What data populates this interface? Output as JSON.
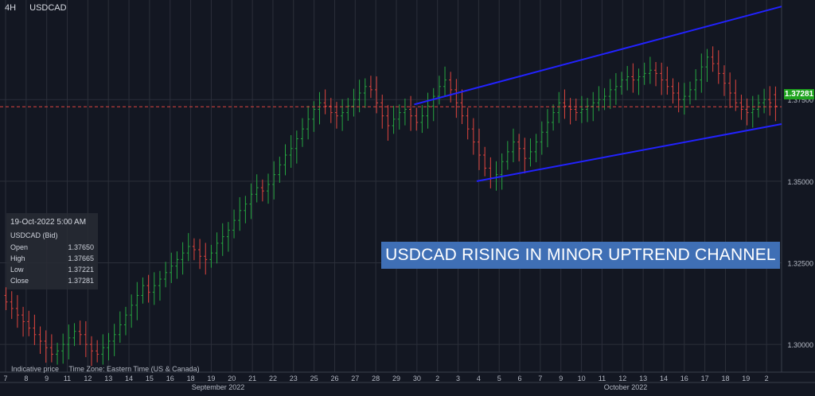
{
  "header": {
    "timeframe": "4H",
    "symbol": "USDCAD"
  },
  "info_box": {
    "datetime": "19-Oct-2022 5:00 AM",
    "title": "USDCAD (Bid)",
    "rows": [
      {
        "label": "Open",
        "value": "1.37650"
      },
      {
        "label": "High",
        "value": "1.37665"
      },
      {
        "label": "Low",
        "value": "1.37221"
      },
      {
        "label": "Close",
        "value": "1.37281"
      }
    ]
  },
  "banner": {
    "text": "USDCAD RISING IN MINOR UPTREND CHANNEL"
  },
  "footer": {
    "indicative": "Indicative price",
    "timezone": "Time Zone: Eastern Time (US & Canada)"
  },
  "last_price": {
    "value": 1.37281,
    "label": "1.37281"
  },
  "colors": {
    "up": "#26a641",
    "down": "#e0453f",
    "channel": "#2222ff",
    "last_price_line": "#e0453f",
    "background": "#131722",
    "grid": "#2b2f3a"
  },
  "chart_data": {
    "type": "ohlc",
    "title": "",
    "ylim": [
      1.2915,
      1.4055
    ],
    "y_ticks": [
      1.3,
      1.325,
      1.35,
      1.375
    ],
    "y_tick_labels": [
      "1.30000",
      "1.32500",
      "1.35000",
      "1.37500"
    ],
    "x_labels": [
      "7",
      "8",
      "9",
      "11",
      "12",
      "13",
      "14",
      "15",
      "16",
      "18",
      "19",
      "20",
      "21",
      "22",
      "23",
      "25",
      "26",
      "27",
      "28",
      "29",
      "30",
      "2",
      "3",
      "4",
      "5",
      "6",
      "7",
      "9",
      "10",
      "11",
      "12",
      "13",
      "14",
      "16",
      "17",
      "18",
      "19",
      "2"
    ],
    "months": [
      "September 2022",
      "October 2022"
    ],
    "grid": true,
    "series": [
      {
        "type": "ohlc",
        "close": [
          1.313,
          1.311,
          1.309,
          1.307,
          1.305,
          1.303,
          1.301,
          1.299,
          1.297,
          1.298,
          1.3,
          1.302,
          1.304,
          1.303,
          1.3,
          1.298,
          1.297,
          1.299,
          1.301,
          1.303,
          1.306,
          1.309,
          1.312,
          1.315,
          1.318,
          1.316,
          1.318,
          1.32,
          1.322,
          1.324,
          1.326,
          1.328,
          1.33,
          1.329,
          1.327,
          1.326,
          1.328,
          1.331,
          1.333,
          1.335,
          1.338,
          1.341,
          1.343,
          1.346,
          1.348,
          1.347,
          1.349,
          1.352,
          1.355,
          1.358,
          1.36,
          1.363,
          1.366,
          1.369,
          1.372,
          1.374,
          1.373,
          1.371,
          1.37,
          1.371,
          1.373,
          1.375,
          1.377,
          1.379,
          1.378,
          1.374,
          1.37,
          1.367,
          1.369,
          1.371,
          1.372,
          1.37,
          1.368,
          1.37,
          1.373,
          1.376,
          1.379,
          1.381,
          1.378,
          1.374,
          1.37,
          1.366,
          1.362,
          1.358,
          1.354,
          1.351,
          1.352,
          1.356,
          1.359,
          1.362,
          1.36,
          1.357,
          1.359,
          1.362,
          1.365,
          1.368,
          1.371,
          1.374,
          1.373,
          1.372,
          1.371,
          1.372,
          1.373,
          1.374,
          1.375,
          1.376,
          1.378,
          1.379,
          1.381,
          1.382,
          1.381,
          1.382,
          1.383,
          1.384,
          1.383,
          1.381,
          1.379,
          1.377,
          1.375,
          1.376,
          1.378,
          1.381,
          1.385,
          1.388,
          1.386,
          1.383,
          1.38,
          1.377,
          1.374,
          1.372,
          1.371,
          1.372,
          1.374,
          1.375,
          1.374,
          1.373
        ],
        "open": [
          1.315,
          1.313,
          1.311,
          1.309,
          1.307,
          1.305,
          1.303,
          1.301,
          1.299,
          1.297,
          1.298,
          1.3,
          1.302,
          1.304,
          1.303,
          1.3,
          1.298,
          1.297,
          1.299,
          1.301,
          1.303,
          1.306,
          1.309,
          1.312,
          1.315,
          1.318,
          1.316,
          1.318,
          1.32,
          1.322,
          1.324,
          1.326,
          1.328,
          1.33,
          1.329,
          1.327,
          1.326,
          1.328,
          1.331,
          1.333,
          1.335,
          1.338,
          1.341,
          1.343,
          1.346,
          1.348,
          1.347,
          1.349,
          1.352,
          1.355,
          1.358,
          1.36,
          1.363,
          1.366,
          1.369,
          1.372,
          1.374,
          1.373,
          1.371,
          1.37,
          1.371,
          1.373,
          1.375,
          1.377,
          1.379,
          1.378,
          1.374,
          1.37,
          1.367,
          1.369,
          1.371,
          1.372,
          1.37,
          1.368,
          1.37,
          1.373,
          1.376,
          1.379,
          1.381,
          1.378,
          1.374,
          1.37,
          1.366,
          1.362,
          1.358,
          1.354,
          1.351,
          1.352,
          1.356,
          1.359,
          1.362,
          1.36,
          1.357,
          1.359,
          1.362,
          1.365,
          1.368,
          1.371,
          1.374,
          1.373,
          1.372,
          1.371,
          1.372,
          1.373,
          1.374,
          1.375,
          1.376,
          1.378,
          1.379,
          1.381,
          1.382,
          1.381,
          1.382,
          1.383,
          1.384,
          1.383,
          1.381,
          1.379,
          1.377,
          1.375,
          1.376,
          1.378,
          1.381,
          1.385,
          1.388,
          1.386,
          1.383,
          1.38,
          1.377,
          1.374,
          1.372,
          1.371,
          1.372,
          1.374,
          1.375,
          1.3765
        ]
      }
    ],
    "annotations": [
      {
        "type": "trendline",
        "x0": 0.53,
        "y0": 1.3735,
        "x1": 1.0,
        "y1": 1.4035
      },
      {
        "type": "trendline",
        "x0": 0.61,
        "y0": 1.35,
        "x1": 1.0,
        "y1": 1.3675
      }
    ],
    "last_price": 1.37281
  }
}
